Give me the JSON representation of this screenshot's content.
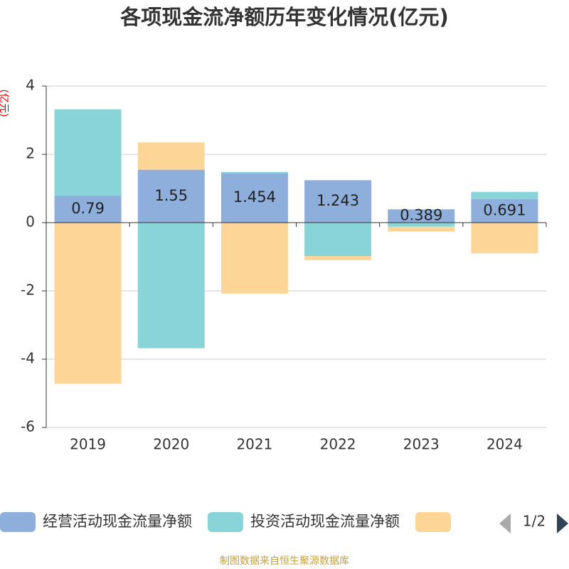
{
  "chart_data": {
    "type": "bar",
    "stacked": true,
    "title": "各项现金流净额历年变化情况(亿元)",
    "y_label": "(亿元)",
    "categories": [
      "2019",
      "2020",
      "2021",
      "2022",
      "2023",
      "2024"
    ],
    "series": [
      {
        "name": "经营活动现金流量净额",
        "color": "#8eaedb",
        "values": [
          0.79,
          1.55,
          1.454,
          1.243,
          0.389,
          0.691
        ]
      },
      {
        "name": "投资活动现金流量净额",
        "color": "#88d4d8",
        "values": [
          2.53,
          -3.68,
          0.03,
          -0.98,
          -0.12,
          0.21
        ]
      },
      {
        "color": "#fdd697",
        "values": [
          -4.72,
          0.8,
          -2.08,
          -0.12,
          -0.14,
          -0.9
        ]
      }
    ],
    "ylim": [
      -6,
      4
    ],
    "yticks": [
      -6,
      -4,
      -2,
      0,
      2,
      4
    ],
    "grid": true,
    "legend": "bottom",
    "legend_page": "1/2",
    "source": "制图数据来自恒生聚源数据库"
  }
}
